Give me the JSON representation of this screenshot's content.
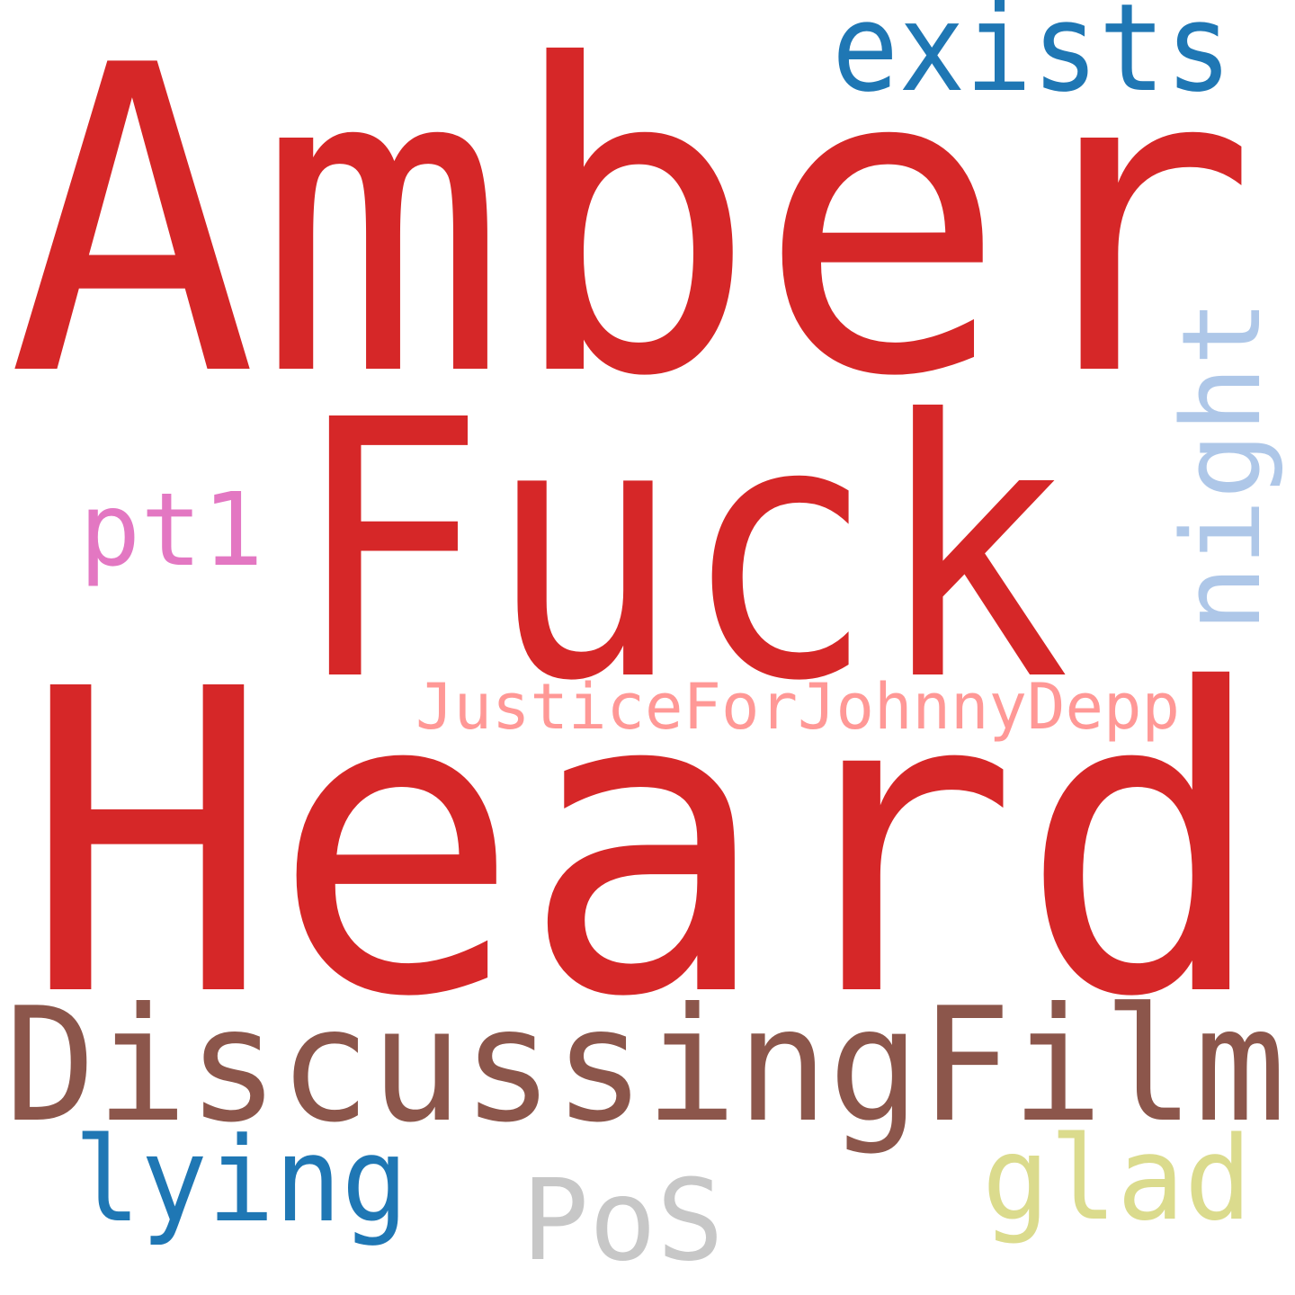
{
  "background": "#ffffff",
  "words": [
    {
      "key": "amber",
      "text": "Amber",
      "color": "#d62728",
      "vertical": false
    },
    {
      "key": "fuck",
      "text": "Fuck",
      "color": "#d62728",
      "vertical": false
    },
    {
      "key": "heard",
      "text": "Heard",
      "color": "#d62728",
      "vertical": false
    },
    {
      "key": "discussingfilm",
      "text": "DiscussingFilm",
      "color": "#8c564b",
      "vertical": false
    },
    {
      "key": "exists",
      "text": "exists",
      "color": "#1f77b4",
      "vertical": false
    },
    {
      "key": "night",
      "text": "night",
      "color": "#aec7e8",
      "vertical": true
    },
    {
      "key": "pt1",
      "text": "pt1",
      "color": "#e377c2",
      "vertical": false
    },
    {
      "key": "justicefor",
      "text": "JusticeForJohnnyDepp",
      "color": "#ff9896",
      "vertical": false
    },
    {
      "key": "lying",
      "text": "lying",
      "color": "#1f77b4",
      "vertical": false
    },
    {
      "key": "pos",
      "text": "PoS",
      "color": "#c7c7c7",
      "vertical": false
    },
    {
      "key": "glad",
      "text": "glad",
      "color": "#dbdb8d",
      "vertical": false
    }
  ]
}
